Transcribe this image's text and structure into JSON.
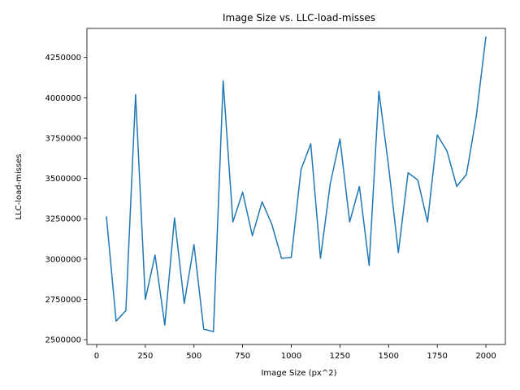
{
  "chart_data": {
    "type": "line",
    "title": "Image Size vs. LLC-load-misses",
    "xlabel": "Image Size (px^2)",
    "ylabel": "LLC-load-misses",
    "xlim": [
      -50,
      2100
    ],
    "ylim": [
      2470000,
      4430000
    ],
    "xticks": [
      0,
      250,
      500,
      750,
      1000,
      1250,
      1500,
      1750,
      2000
    ],
    "yticks": [
      2500000,
      2750000,
      3000000,
      3250000,
      3500000,
      3750000,
      4000000,
      4250000
    ],
    "grid": false,
    "color": "#1f77b4",
    "series": [
      {
        "x": [
          50,
          100,
          150,
          200,
          250,
          300,
          350,
          400,
          450,
          500,
          550,
          600,
          650,
          700,
          750,
          800,
          850,
          900,
          950,
          1000,
          1050,
          1100,
          1150,
          1200,
          1250,
          1300,
          1350,
          1400,
          1450,
          1500,
          1550,
          1600,
          1650,
          1700,
          1750,
          1800,
          1850,
          1900,
          1950,
          2000
        ],
        "values": [
          3265000,
          2615000,
          2680000,
          4020000,
          2750000,
          3025000,
          2590000,
          3255000,
          2725000,
          3090000,
          2565000,
          2550000,
          4105000,
          3230000,
          3415000,
          3145000,
          3355000,
          3215000,
          3005000,
          3010000,
          3555000,
          3715000,
          3005000,
          3465000,
          3745000,
          3230000,
          3450000,
          2960000,
          4040000,
          3575000,
          3040000,
          3535000,
          3490000,
          3230000,
          3770000,
          3670000,
          3450000,
          3525000,
          3880000,
          4380000
        ]
      }
    ]
  }
}
